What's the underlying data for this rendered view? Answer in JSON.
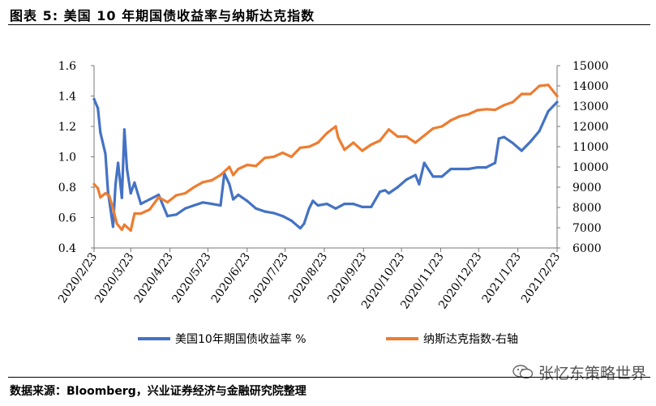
{
  "figure": {
    "title": "图表 5:  美国 10 年期国债收益率与纳斯达克指数",
    "source": "数据来源：Bloomberg，兴业证券经济与金融研究院整理",
    "watermark": "张忆东策略世界"
  },
  "chart_data": {
    "type": "line",
    "title": "",
    "xlabel": "",
    "ylabel": "",
    "ylabel_right": "",
    "x_tick_labels": [
      "2020/2/23",
      "2020/3/23",
      "2020/4/23",
      "2020/5/23",
      "2020/6/23",
      "2020/7/23",
      "2020/8/23",
      "2020/9/23",
      "2020/10/23",
      "2020/11/23",
      "2020/12/23",
      "2021/1/23",
      "2021/2/23"
    ],
    "ylim_left": [
      0.4,
      1.6
    ],
    "y_ticks_left": [
      "0.4",
      "0.6",
      "0.8",
      "1.0",
      "1.2",
      "1.4",
      "1.6"
    ],
    "ylim_right": [
      6000,
      15000
    ],
    "y_ticks_right": [
      "6000",
      "7000",
      "8000",
      "9000",
      "10000",
      "11000",
      "12000",
      "13000",
      "14000",
      "15000"
    ],
    "grid": false,
    "legend_position": "bottom",
    "series": [
      {
        "name": "美国10年期国债收益率 %",
        "axis": "left",
        "color": "#4472C4",
        "x": [
          "2020/2/23",
          "2020/2/26",
          "2020/2/28",
          "2020/3/3",
          "2020/3/5",
          "2020/3/9",
          "2020/3/11",
          "2020/3/13",
          "2020/3/16",
          "2020/3/18",
          "2020/3/20",
          "2020/3/23",
          "2020/3/26",
          "2020/3/31",
          "2020/4/7",
          "2020/4/14",
          "2020/4/21",
          "2020/4/28",
          "2020/5/5",
          "2020/5/12",
          "2020/5/19",
          "2020/5/26",
          "2020/6/2",
          "2020/6/5",
          "2020/6/9",
          "2020/6/12",
          "2020/6/16",
          "2020/6/23",
          "2020/6/30",
          "2020/7/7",
          "2020/7/14",
          "2020/7/21",
          "2020/7/28",
          "2020/8/4",
          "2020/8/7",
          "2020/8/11",
          "2020/8/14",
          "2020/8/18",
          "2020/8/25",
          "2020/9/1",
          "2020/9/8",
          "2020/9/15",
          "2020/9/22",
          "2020/9/29",
          "2020/10/6",
          "2020/10/10",
          "2020/10/13",
          "2020/10/20",
          "2020/10/27",
          "2020/11/3",
          "2020/11/6",
          "2020/11/10",
          "2020/11/17",
          "2020/11/24",
          "2020/12/1",
          "2020/12/8",
          "2020/12/15",
          "2020/12/22",
          "2020/12/29",
          "2021/1/5",
          "2021/1/8",
          "2021/1/12",
          "2021/1/19",
          "2021/1/26",
          "2021/2/2",
          "2021/2/9",
          "2021/2/16",
          "2021/2/23"
        ],
        "values": [
          1.38,
          1.32,
          1.16,
          1.02,
          0.77,
          0.54,
          0.82,
          0.96,
          0.73,
          1.18,
          0.92,
          0.76,
          0.83,
          0.69,
          0.72,
          0.75,
          0.61,
          0.62,
          0.66,
          0.68,
          0.7,
          0.69,
          0.68,
          0.89,
          0.82,
          0.72,
          0.75,
          0.71,
          0.66,
          0.64,
          0.63,
          0.61,
          0.58,
          0.53,
          0.56,
          0.66,
          0.71,
          0.68,
          0.69,
          0.66,
          0.69,
          0.69,
          0.67,
          0.67,
          0.77,
          0.78,
          0.76,
          0.8,
          0.85,
          0.88,
          0.82,
          0.96,
          0.87,
          0.87,
          0.92,
          0.92,
          0.92,
          0.93,
          0.93,
          0.96,
          1.12,
          1.13,
          1.09,
          1.04,
          1.1,
          1.17,
          1.3,
          1.36
        ]
      },
      {
        "name": "纳斯达克指数-右轴",
        "axis": "right",
        "color": "#ED7D31",
        "x": [
          "2020/2/23",
          "2020/2/26",
          "2020/2/28",
          "2020/3/3",
          "2020/3/6",
          "2020/3/9",
          "2020/3/12",
          "2020/3/16",
          "2020/3/18",
          "2020/3/23",
          "2020/3/26",
          "2020/3/31",
          "2020/4/7",
          "2020/4/14",
          "2020/4/21",
          "2020/4/28",
          "2020/5/5",
          "2020/5/12",
          "2020/5/19",
          "2020/5/26",
          "2020/6/2",
          "2020/6/9",
          "2020/6/12",
          "2020/6/16",
          "2020/6/23",
          "2020/6/30",
          "2020/7/7",
          "2020/7/14",
          "2020/7/21",
          "2020/7/28",
          "2020/8/4",
          "2020/8/11",
          "2020/8/18",
          "2020/8/25",
          "2020/9/1",
          "2020/9/3",
          "2020/9/8",
          "2020/9/15",
          "2020/9/22",
          "2020/9/29",
          "2020/10/6",
          "2020/10/13",
          "2020/10/20",
          "2020/10/27",
          "2020/11/3",
          "2020/11/10",
          "2020/11/17",
          "2020/11/24",
          "2020/12/1",
          "2020/12/8",
          "2020/12/15",
          "2020/12/22",
          "2020/12/29",
          "2021/1/5",
          "2021/1/12",
          "2021/1/19",
          "2021/1/26",
          "2021/2/2",
          "2021/2/9",
          "2021/2/16",
          "2021/2/23"
        ],
        "values": [
          9150,
          8950,
          8500,
          8700,
          8575,
          7950,
          7200,
          6900,
          7150,
          6860,
          7700,
          7700,
          7900,
          8500,
          8260,
          8600,
          8700,
          9000,
          9250,
          9340,
          9600,
          10000,
          9600,
          9900,
          10100,
          10050,
          10450,
          10500,
          10700,
          10500,
          10950,
          11000,
          11200,
          11670,
          12000,
          11450,
          10850,
          11200,
          10800,
          11100,
          11300,
          11850,
          11500,
          11500,
          11200,
          11550,
          11900,
          12000,
          12300,
          12500,
          12600,
          12800,
          12850,
          12820,
          13050,
          13200,
          13600,
          13600,
          14000,
          14050,
          13500
        ]
      }
    ]
  }
}
